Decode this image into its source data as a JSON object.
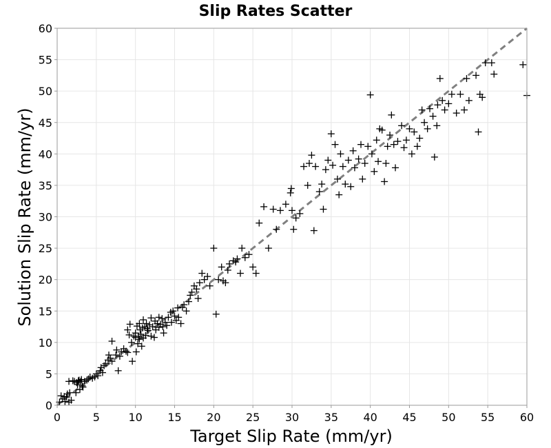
{
  "chart_data": {
    "type": "scatter",
    "title": "Slip Rates Scatter",
    "xlabel": "Target Slip Rate (mm/yr)",
    "ylabel": "Solution Slip Rate (mm/yr)",
    "xlim": [
      0,
      60
    ],
    "ylim": [
      0,
      60
    ],
    "xticks": [
      0,
      5,
      10,
      15,
      20,
      25,
      30,
      35,
      40,
      45,
      50,
      55,
      60
    ],
    "yticks": [
      0,
      5,
      10,
      15,
      20,
      25,
      30,
      35,
      40,
      45,
      50,
      55,
      60
    ],
    "grid": true,
    "marker": "plus",
    "marker_color": "#000000",
    "reference_line": {
      "style": "dashed",
      "color": "#808080",
      "points": [
        [
          0,
          0
        ],
        [
          60,
          60
        ]
      ]
    },
    "series": [
      {
        "points": [
          [
            0.3,
            0.5
          ],
          [
            0.5,
            1.5
          ],
          [
            0.7,
            1.0
          ],
          [
            0.9,
            1.4
          ],
          [
            1.0,
            0.6
          ],
          [
            1.2,
            1.3
          ],
          [
            1.3,
            1.8
          ],
          [
            1.5,
            0.5
          ],
          [
            1.6,
            2.0
          ],
          [
            1.8,
            0.8
          ],
          [
            1.5,
            3.8
          ],
          [
            2.0,
            3.9
          ],
          [
            2.2,
            3.8
          ],
          [
            2.4,
            2.0
          ],
          [
            2.5,
            3.6
          ],
          [
            2.7,
            3.9
          ],
          [
            2.9,
            2.5
          ],
          [
            3.0,
            3.8
          ],
          [
            3.2,
            3.1
          ],
          [
            3.5,
            3.8
          ],
          [
            2.6,
            3.3
          ],
          [
            2.8,
            4.0
          ],
          [
            3.1,
            4.1
          ],
          [
            3.3,
            2.9
          ],
          [
            3.8,
            4.0
          ],
          [
            4.0,
            4.2
          ],
          [
            4.2,
            4.5
          ],
          [
            4.5,
            4.3
          ],
          [
            4.8,
            4.5
          ],
          [
            5.0,
            5.0
          ],
          [
            5.2,
            4.7
          ],
          [
            5.5,
            5.5
          ],
          [
            5.6,
            6.0
          ],
          [
            5.8,
            5.2
          ],
          [
            6.0,
            6.3
          ],
          [
            6.2,
            6.6
          ],
          [
            6.5,
            7.2
          ],
          [
            6.6,
            8.0
          ],
          [
            6.8,
            7.5
          ],
          [
            7.0,
            7.0
          ],
          [
            7.0,
            10.2
          ],
          [
            7.5,
            8.0
          ],
          [
            7.6,
            8.8
          ],
          [
            7.8,
            5.5
          ],
          [
            8.0,
            7.8
          ],
          [
            8.2,
            8.5
          ],
          [
            8.5,
            9.0
          ],
          [
            8.8,
            8.6
          ],
          [
            9.0,
            8.4
          ],
          [
            9.2,
            11.2
          ],
          [
            9.0,
            12.0
          ],
          [
            9.3,
            12.9
          ],
          [
            9.5,
            10.0
          ],
          [
            9.6,
            7.0
          ],
          [
            9.8,
            11.0
          ],
          [
            10.0,
            11.5
          ],
          [
            10.0,
            10.8
          ],
          [
            10.1,
            8.5
          ],
          [
            10.2,
            12.6
          ],
          [
            10.3,
            9.8
          ],
          [
            10.4,
            11.0
          ],
          [
            10.5,
            13.0
          ],
          [
            10.5,
            10.5
          ],
          [
            10.6,
            12.0
          ],
          [
            10.7,
            11.3
          ],
          [
            10.8,
            9.4
          ],
          [
            10.9,
            12.3
          ],
          [
            11.0,
            10.7
          ],
          [
            11.0,
            13.6
          ],
          [
            11.2,
            12.5
          ],
          [
            11.3,
            11.1
          ],
          [
            11.4,
            13.0
          ],
          [
            11.5,
            12.2
          ],
          [
            11.6,
            11.9
          ],
          [
            11.8,
            12.8
          ],
          [
            12.0,
            11.0
          ],
          [
            12.0,
            13.9
          ],
          [
            12.2,
            12.5
          ],
          [
            12.4,
            10.8
          ],
          [
            12.5,
            13.4
          ],
          [
            12.6,
            12.0
          ],
          [
            12.8,
            13.0
          ],
          [
            13.0,
            12.4
          ],
          [
            13.0,
            14.0
          ],
          [
            13.2,
            12.9
          ],
          [
            13.4,
            13.8
          ],
          [
            13.5,
            12.5
          ],
          [
            13.6,
            11.5
          ],
          [
            13.8,
            13.2
          ],
          [
            14.0,
            12.7
          ],
          [
            14.2,
            14.0
          ],
          [
            14.5,
            14.8
          ],
          [
            14.6,
            13.2
          ],
          [
            14.8,
            15.0
          ],
          [
            15.0,
            14.2
          ],
          [
            15.2,
            13.5
          ],
          [
            15.4,
            15.5
          ],
          [
            15.5,
            14.0
          ],
          [
            15.8,
            13.0
          ],
          [
            16.0,
            15.6
          ],
          [
            16.2,
            16.0
          ],
          [
            16.5,
            15.0
          ],
          [
            16.8,
            16.5
          ],
          [
            17.0,
            17.5
          ],
          [
            17.2,
            18.0
          ],
          [
            17.5,
            19.0
          ],
          [
            17.8,
            18.5
          ],
          [
            18.0,
            17.0
          ],
          [
            18.2,
            19.5
          ],
          [
            18.5,
            21.0
          ],
          [
            18.8,
            20.0
          ],
          [
            19.2,
            20.5
          ],
          [
            19.5,
            19.0
          ],
          [
            20.0,
            25.0
          ],
          [
            20.3,
            14.5
          ],
          [
            20.6,
            20.0
          ],
          [
            21.0,
            22.0
          ],
          [
            21.2,
            19.8
          ],
          [
            21.5,
            19.5
          ],
          [
            21.8,
            21.5
          ],
          [
            22.0,
            22.5
          ],
          [
            22.5,
            23.0
          ],
          [
            22.8,
            22.8
          ],
          [
            23.0,
            23.3
          ],
          [
            23.4,
            21.0
          ],
          [
            23.6,
            25.0
          ],
          [
            24.0,
            23.5
          ],
          [
            24.5,
            24.0
          ],
          [
            25.0,
            22.0
          ],
          [
            25.4,
            21.0
          ],
          [
            25.8,
            29.0
          ],
          [
            26.4,
            31.6
          ],
          [
            27.0,
            25.0
          ],
          [
            27.6,
            31.2
          ],
          [
            28.0,
            28.0
          ],
          [
            28.5,
            31.0
          ],
          [
            29.2,
            32.0
          ],
          [
            29.8,
            33.8
          ],
          [
            30.0,
            31.0
          ],
          [
            30.2,
            28.0
          ],
          [
            29.9,
            34.5
          ],
          [
            30.5,
            29.8
          ],
          [
            31.0,
            30.5
          ],
          [
            31.5,
            38.0
          ],
          [
            32.0,
            35.0
          ],
          [
            32.2,
            38.5
          ],
          [
            32.5,
            39.8
          ],
          [
            32.8,
            27.8
          ],
          [
            33.0,
            38.0
          ],
          [
            33.5,
            34.0
          ],
          [
            33.8,
            35.2
          ],
          [
            34.0,
            31.2
          ],
          [
            34.3,
            37.5
          ],
          [
            34.6,
            39.0
          ],
          [
            35.0,
            43.2
          ],
          [
            35.2,
            38.2
          ],
          [
            35.5,
            41.5
          ],
          [
            35.8,
            36.0
          ],
          [
            36.0,
            33.5
          ],
          [
            36.2,
            40.0
          ],
          [
            36.5,
            38.0
          ],
          [
            36.8,
            35.2
          ],
          [
            37.2,
            39.0
          ],
          [
            37.5,
            34.8
          ],
          [
            37.8,
            40.5
          ],
          [
            38.0,
            37.8
          ],
          [
            38.5,
            39.2
          ],
          [
            38.8,
            41.5
          ],
          [
            39.0,
            36.0
          ],
          [
            39.3,
            38.5
          ],
          [
            39.7,
            41.2
          ],
          [
            40.0,
            49.4
          ],
          [
            40.2,
            40.0
          ],
          [
            40.5,
            37.2
          ],
          [
            40.8,
            42.2
          ],
          [
            41.0,
            38.8
          ],
          [
            41.2,
            44.0
          ],
          [
            41.5,
            43.8
          ],
          [
            41.8,
            35.6
          ],
          [
            42.0,
            38.5
          ],
          [
            42.2,
            41.2
          ],
          [
            42.5,
            43.0
          ],
          [
            42.7,
            46.2
          ],
          [
            43.0,
            41.5
          ],
          [
            43.2,
            37.8
          ],
          [
            43.5,
            42.0
          ],
          [
            44.0,
            44.5
          ],
          [
            44.3,
            41.0
          ],
          [
            44.6,
            42.2
          ],
          [
            45.0,
            44.0
          ],
          [
            45.3,
            40.0
          ],
          [
            45.6,
            43.5
          ],
          [
            46.0,
            41.2
          ],
          [
            46.3,
            42.5
          ],
          [
            46.6,
            47.0
          ],
          [
            46.9,
            45.0
          ],
          [
            47.3,
            44.0
          ],
          [
            47.6,
            47.2
          ],
          [
            48.0,
            46.0
          ],
          [
            48.2,
            39.5
          ],
          [
            48.5,
            44.5
          ],
          [
            48.6,
            47.8
          ],
          [
            48.9,
            52.0
          ],
          [
            49.2,
            48.5
          ],
          [
            49.5,
            47.0
          ],
          [
            50.0,
            48.0
          ],
          [
            50.4,
            49.5
          ],
          [
            51.0,
            46.5
          ],
          [
            51.5,
            49.5
          ],
          [
            52.0,
            47.0
          ],
          [
            52.3,
            52.0
          ],
          [
            52.6,
            48.5
          ],
          [
            53.5,
            52.5
          ],
          [
            53.8,
            43.5
          ],
          [
            54.0,
            49.5
          ],
          [
            54.3,
            49.0
          ],
          [
            54.7,
            54.5
          ],
          [
            55.5,
            54.5
          ],
          [
            55.8,
            52.7
          ],
          [
            59.5,
            54.2
          ],
          [
            60.0,
            49.3
          ]
        ]
      }
    ]
  }
}
